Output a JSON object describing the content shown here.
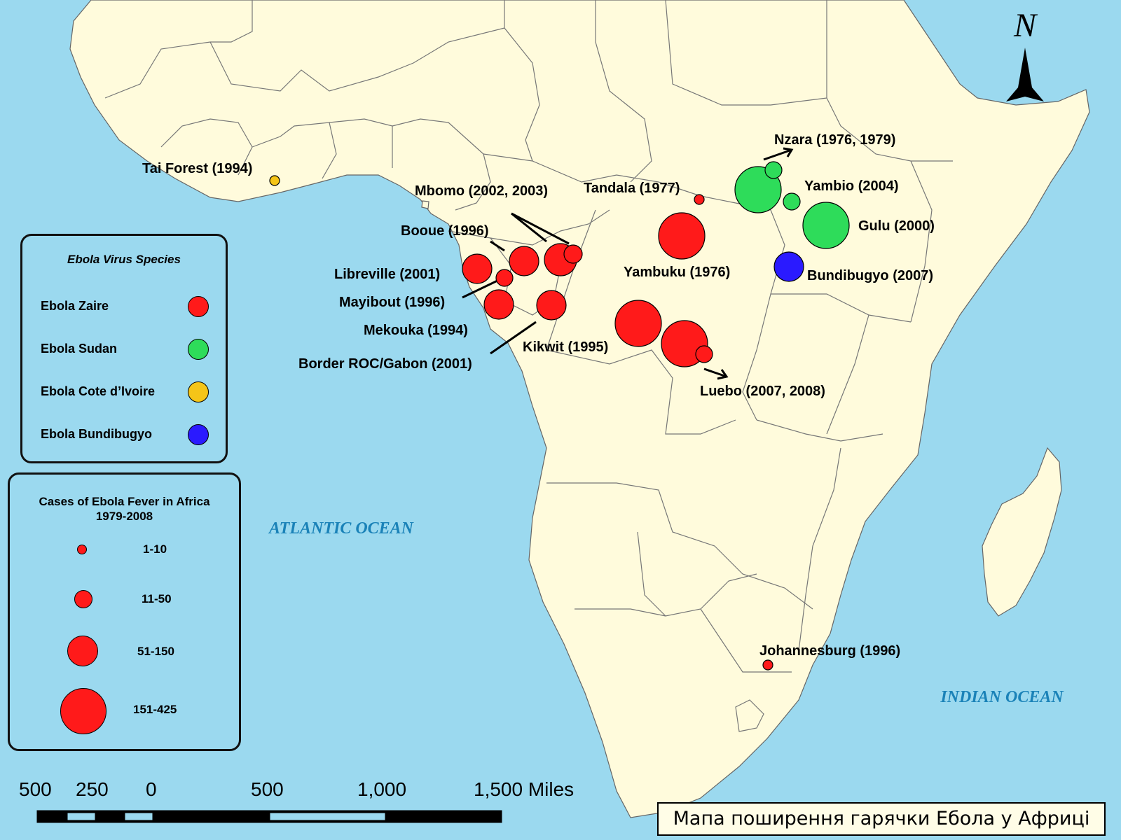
{
  "map": {
    "north_symbol": "N",
    "ocean_labels": {
      "atlantic": "ATLANTIC OCEAN",
      "indian": "INDIAN OCEAN"
    },
    "outbreaks": [
      {
        "label": "Tai Forest (1994)",
        "species": "cote",
        "size": "1-10"
      },
      {
        "label": "Mbomo (2002, 2003)",
        "species": "zaire",
        "size": "11-50"
      },
      {
        "label": "Booue (1996)",
        "species": "zaire",
        "size": "51-150"
      },
      {
        "label": "Libreville (2001)",
        "species": "zaire",
        "size": "51-150"
      },
      {
        "label": "Mayibout (1996)",
        "species": "zaire",
        "size": "51-150"
      },
      {
        "label": "Mekouka (1994)",
        "species": "zaire",
        "size": "51-150"
      },
      {
        "label": "Border ROC/Gabon (2001)",
        "species": "zaire",
        "size": "51-150"
      },
      {
        "label": "Tandala (1977)",
        "species": "zaire",
        "size": "1-10"
      },
      {
        "label": "Yambuku (1976)",
        "species": "zaire",
        "size": "151-425"
      },
      {
        "label": "Kikwit (1995)",
        "species": "zaire",
        "size": "151-425"
      },
      {
        "label": "Luebo (2007, 2008)",
        "species": "zaire",
        "size": "151-425"
      },
      {
        "label": "Nzara (1976, 1979)",
        "species": "sudan",
        "size": "151-425"
      },
      {
        "label": "Yambio (2004)",
        "species": "sudan",
        "size": "11-50"
      },
      {
        "label": "Gulu (2000)",
        "species": "sudan",
        "size": "151-425"
      },
      {
        "label": "Bundibugyo (2007)",
        "species": "bundibugyo",
        "size": "51-150"
      },
      {
        "label": "Johannesburg (1996)",
        "species": "zaire",
        "size": "1-10"
      }
    ]
  },
  "species_legend": {
    "title": "Ebola Virus Species",
    "items": [
      {
        "label": "Ebola Zaire",
        "color": "#ff1a1a"
      },
      {
        "label": "Ebola Sudan",
        "color": "#2edc5a"
      },
      {
        "label": "Ebola Cote d’Ivoire",
        "color": "#f5c518"
      },
      {
        "label": "Ebola Bundibugyo",
        "color": "#2a1aff"
      }
    ]
  },
  "size_legend": {
    "title_line1": "Cases of Ebola Fever in Africa",
    "title_line2": "1979-2008",
    "classes": [
      "1-10",
      "11-50",
      "51-150",
      "151-425"
    ]
  },
  "scale_bar": {
    "ticks": [
      "500",
      "250",
      "0",
      "500",
      "1,000",
      "1,500 Miles"
    ]
  },
  "caption": "Мапа поширення гарячки Ебола у Африці"
}
